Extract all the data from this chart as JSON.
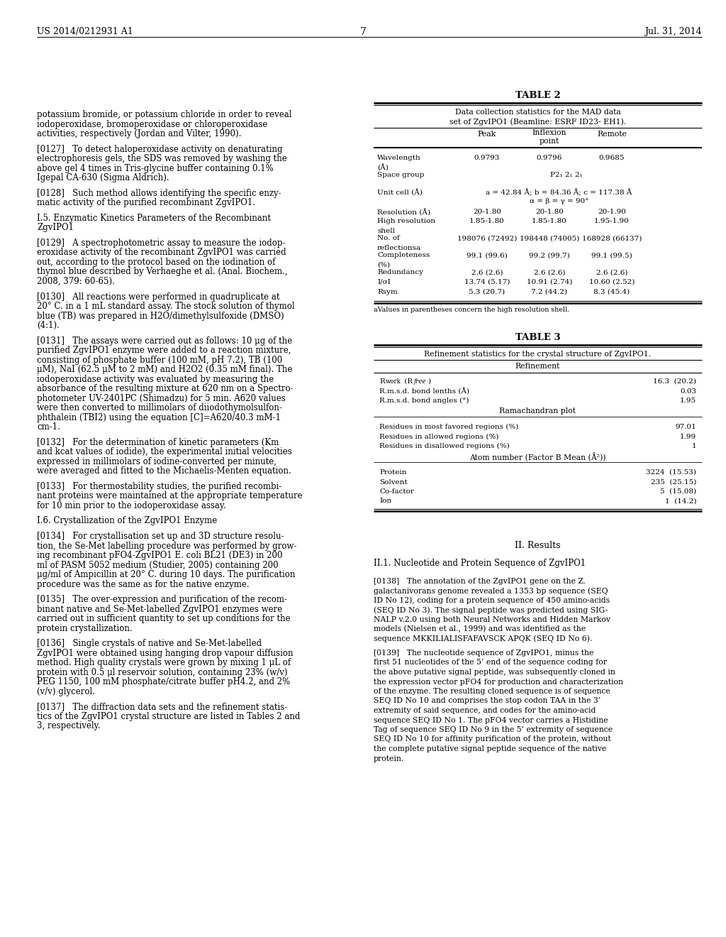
{
  "background_color": "#ffffff",
  "header_left": "US 2014/0212931 A1",
  "header_center": "7",
  "header_right": "Jul. 31, 2014",
  "left_col_lines": [
    "potassium bromide, or potassium chloride in order to reveal",
    "iodoperoxidase, bromoperoxidase or chloroperoxidase",
    "activities, respectively (Jordan and Vilter, 1990).",
    "",
    "[0127]   To detect haloperoxidase activity on denaturating",
    "electrophoresis gels, the SDS was removed by washing the",
    "above gel 4 times in Tris-glycine buffer containing 0.1%",
    "Igepal CA-630 (Sigma Aldrich).",
    "",
    "[0128]   Such method allows identifying the specific enzy-",
    "matic activity of the purified recombinant ZgvIPO1.",
    "",
    "I.5. Enzymatic Kinetics Parameters of the Recombinant",
    "ZgvIPO1",
    "",
    "[0129]   A spectrophotometric assay to measure the iodop-",
    "eroxidase activity of the recombinant ZgvIPO1 was carried",
    "out, according to the protocol based on the iodination of",
    "thymol blue described by Verhaeghe et al. (Anal. Biochem.,",
    "2008, 379: 60-65).",
    "",
    "[0130]   All reactions were performed in quadruplicate at",
    "20° C. in a 1 mL standard assay. The stock solution of thymol",
    "blue (TB) was prepared in H2O/dimethylsulfoxide (DMSO)",
    "(4:1).",
    "",
    "[0131]   The assays were carried out as follows: 10 μg of the",
    "purified ZgvIPO1 enzyme were added to a reaction mixture,",
    "consisting of phosphate buffer (100 mM, pH 7.2), TB (100",
    "μM), NaI (62.5 μM to 2 mM) and H2O2 (0.35 mM final). The",
    "iodoperoxidase activity was evaluated by measuring the",
    "absorbance of the resulting mixture at 620 nm on a Spectro-",
    "photometer UV-2401PC (Shimadzu) for 5 min. A620 values",
    "were then converted to millimolars of diiodothymolsulfon-",
    "phthalein (TBI2) using the equation [C]=A620/40.3 mM-1",
    "cm-1.",
    "",
    "[0132]   For the determination of kinetic parameters (Km",
    "and kcat values of iodide), the experimental initial velocities",
    "expressed in millimolars of iodine-converted per minute,",
    "were averaged and fitted to the Michaelis-Menten equation.",
    "",
    "[0133]   For thermostability studies, the purified recombi-",
    "nant proteins were maintained at the appropriate temperature",
    "for 10 min prior to the iodoperoxidase assay.",
    "",
    "I.6. Crystallization of the ZgvIPO1 Enzyme",
    "",
    "[0134]   For crystallisation set up and 3D structure resolu-",
    "tion, the Se-Met labelling procedure was performed by grow-",
    "ing recombinant pFO4-ZgvIPO1 E. coli BL21 (DE3) in 200",
    "ml of PASM 5052 medium (Studier, 2005) containing 200",
    "μg/ml of Ampicillin at 20° C. during 10 days. The purification",
    "procedure was the same as for the native enzyme.",
    "",
    "[0135]   The over-expression and purification of the recom-",
    "binant native and Se-Met-labelled ZgvIPO1 enzymes were",
    "carried out in sufficient quantity to set up conditions for the",
    "protein crystallization.",
    "",
    "[0136]   Single crystals of native and Se-Met-labelled",
    "ZgvIPO1 were obtained using hanging drop vapour diffusion",
    "method. High quality crystals were grown by mixing 1 μL of",
    "protein with 0.5 μl reservoir solution, containing 23% (w/v)",
    "PEG 1150, 100 mM phosphate/citrate buffer pH4.2, and 2%",
    "(v/v) glycerol.",
    "",
    "[0137]   The diffraction data sets and the refinement statis-",
    "tics of the ZgvIPO1 crystal structure are listed in Tables 2 and",
    "3, respectively."
  ],
  "right_col_lines_bottom": [
    "II. Results",
    "",
    "II.1. Nucleotide and Protein Sequence of ZgvIPO1",
    "",
    "[0138]   The annotation of the ZgvIPO1 gene on the Z.",
    "galactanivorans genome revealed a 1353 bp sequence (SEQ",
    "ID No 12), coding for a protein sequence of 450 amino-acids",
    "(SEQ ID No 3). The signal peptide was predicted using SIG-",
    "NALP v.2.0 using both Neural Networks and Hidden Markov",
    "models (Nielsen et al., 1999) and was identified as the",
    "sequence MKKILIALISFAFAVSCK APQK (SEQ ID No 6).",
    "",
    "[0139]   The nucleotide sequence of ZgvIPO1, minus the",
    "first 51 nucleotides of the 5’ end of the sequence coding for",
    "the above putative signal peptide, was subsequently cloned in",
    "the expression vector pFO4 for production and characterization",
    "of the enzyme. The resulting cloned sequence is of sequence",
    "SEQ ID No 10 and comprises the stop codon TAA in the 3’",
    "extremity of said sequence, and codes for the amino-acid",
    "sequence SEQ ID No 1. The pFO4 vector carries a Histidine",
    "Tag of sequence SEQ ID No 9 in the 5’ extremity of sequence",
    "SEQ ID No 10 for affinity purification of the protein, without",
    "the complete putative signal peptide sequence of the native",
    "protein."
  ],
  "table2_title": "TABLE 2",
  "table2_subtitle1": "Data collection statistics for the MAD data",
  "table2_subtitle2": "set of ZgvIPO1 (Beamline: ESRF ID23- EH1).",
  "table2_col_headers": [
    "",
    "Peak",
    "Inflexion\npoint",
    "Remote"
  ],
  "table2_rows": [
    [
      "Wavelength\n(Å)",
      "0.9793",
      "0.9796",
      "0.9685"
    ],
    [
      "Space group",
      "",
      "P2₁ 2₁ 2₁",
      ""
    ],
    [
      "Unit cell (Å)",
      "",
      "a = 42.84 Å; b = 84.36 Å; c = 117.38 Å\nα = β = γ = 90°",
      ""
    ],
    [
      "Resolution (Å)",
      "20-1.80",
      "20-1.80",
      "20-1.90"
    ],
    [
      "High resolution\nshell",
      "1.85-1.80",
      "1.85-1.80",
      "1.95-1.90"
    ],
    [
      "No. of\nreflectionsa",
      "198076 (72492)",
      "198448 (74005)",
      "168928 (66137)"
    ],
    [
      "Completeness\n(%)",
      "99.1 (99.6)",
      "99.2 (99.7)",
      "99.1 (99.5)"
    ],
    [
      "Redundancy",
      "2.6 (2.6)",
      "2.6 (2.6)",
      "2.6 (2.6)"
    ],
    [
      "I/σI",
      "13.74 (5.17)",
      "10.91 (2.74)",
      "10.60 (2.52)"
    ],
    [
      "Rsym",
      "5.3 (20.7)",
      "7.2 (44.2)",
      "8.3 (45.4)"
    ]
  ],
  "table2_footnote": "aValues in parentheses concern the high resolution shell.",
  "table3_title": "TABLE 3",
  "table3_subtitle": "Refinement statistics for the crystal structure of ZgvIPO1.",
  "table3_rows1": [
    [
      "Rwork (Rfree)",
      "16.3  (20.2)"
    ],
    [
      "R.m.s.d. bond lenths (Å)",
      "0.03"
    ],
    [
      "R.m.s.d. bond angles (°)",
      "1.95"
    ]
  ],
  "table3_rows2": [
    [
      "Residues in most favored regions (%)",
      "97.01"
    ],
    [
      "Residues in allowed regions (%)",
      "1.99"
    ],
    [
      "Residues in disallowed regions (%)",
      "1"
    ]
  ],
  "table3_rows3": [
    [
      "Protein",
      "3224  (15.53)"
    ],
    [
      "Solvent",
      "235  (25.15)"
    ],
    [
      "Co-factor",
      "5  (15.08)"
    ],
    [
      "Ion",
      "1  (14.2)"
    ]
  ]
}
